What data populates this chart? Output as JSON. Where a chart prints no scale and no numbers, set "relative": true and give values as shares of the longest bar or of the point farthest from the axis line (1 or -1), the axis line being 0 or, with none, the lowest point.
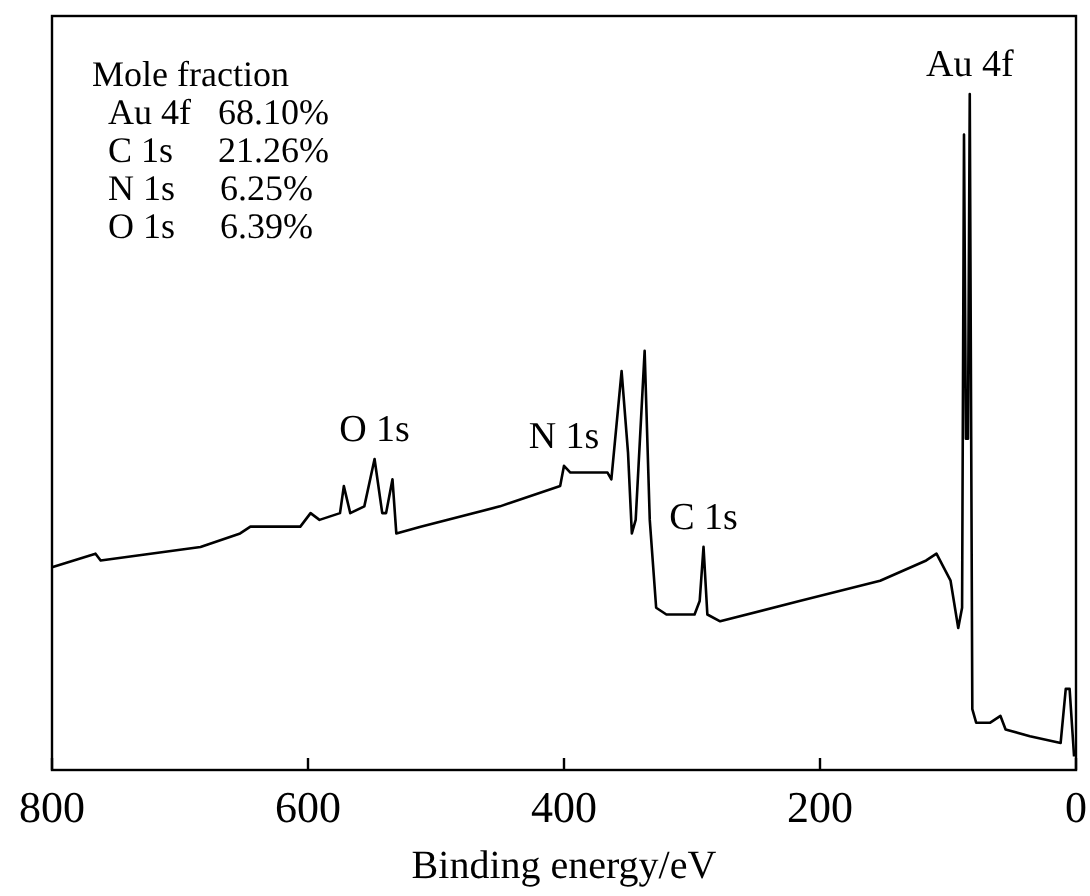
{
  "chart_data": {
    "type": "line",
    "relative": true,
    "xlabel": "Binding energy/eV",
    "xlim": [
      800,
      0
    ],
    "xticks": [
      800,
      600,
      400,
      200,
      0
    ],
    "tick_labels": "x",
    "grid": false,
    "line_style": "solid",
    "series": [
      {
        "color": "#000000",
        "x": [
          800,
          766,
          762,
          684,
          653,
          645,
          637,
          606,
          598,
          591,
          575,
          572,
          567,
          556,
          548,
          542,
          539,
          534,
          531,
          512,
          450,
          403,
          400,
          395,
          372,
          366,
          363,
          355,
          350,
          347,
          344,
          337,
          333,
          328,
          320,
          298,
          294,
          291,
          288,
          278,
          216,
          153,
          117,
          109,
          98,
          92,
          89,
          87.5,
          86,
          84.4,
          83,
          81,
          78,
          67,
          59,
          55,
          36,
          12,
          8,
          5,
          1.5
        ],
        "values": [
          0.3,
          0.32,
          0.31,
          0.33,
          0.35,
          0.36,
          0.36,
          0.36,
          0.38,
          0.37,
          0.38,
          0.42,
          0.38,
          0.39,
          0.46,
          0.38,
          0.38,
          0.43,
          0.35,
          0.36,
          0.39,
          0.42,
          0.45,
          0.44,
          0.44,
          0.44,
          0.43,
          0.59,
          0.47,
          0.35,
          0.37,
          0.62,
          0.37,
          0.24,
          0.23,
          0.23,
          0.25,
          0.33,
          0.23,
          0.22,
          0.25,
          0.28,
          0.31,
          0.32,
          0.28,
          0.21,
          0.24,
          0.94,
          0.49,
          0.49,
          1.0,
          0.09,
          0.07,
          0.07,
          0.08,
          0.06,
          0.05,
          0.04,
          0.12,
          0.12,
          0.02
        ]
      }
    ],
    "annotations": [
      {
        "text": "O 1s",
        "x": 548,
        "y": 0.46
      },
      {
        "text": "N 1s",
        "x": 400,
        "y": 0.45
      },
      {
        "text": "C 1s",
        "x": 291,
        "y": 0.33
      },
      {
        "text": "Au 4f",
        "x": 83,
        "y": 1.0
      },
      "Mole fraction",
      "Au 4f   68.10%",
      "C 1s     21.26%",
      "N 1s     6.25%",
      "O 1s     6.39%"
    ]
  }
}
